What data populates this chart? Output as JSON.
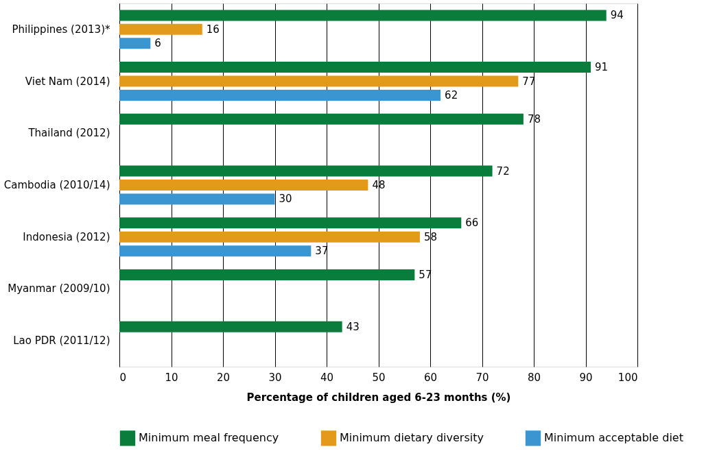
{
  "chart_data": {
    "type": "bar",
    "orientation": "horizontal",
    "xlabel": "Percentage of children aged 6-23 months (%)",
    "categories": [
      "Philippines (2013)*",
      "Viet Nam (2014)",
      "Thailand (2012)",
      "Cambodia (2010/14)",
      "Indonesia (2012)",
      "Myanmar (2009/10)",
      "Lao PDR (2011/12)"
    ],
    "series": [
      {
        "name": "Minimum meal frequency",
        "color": "#0a7d3c",
        "values": [
          94,
          91,
          78,
          72,
          66,
          57,
          43
        ]
      },
      {
        "name": "Minimum dietary diversity",
        "color": "#e39a1a",
        "values": [
          16,
          77,
          null,
          48,
          58,
          null,
          null
        ]
      },
      {
        "name": "Minimum acceptable diet",
        "color": "#3a95d0",
        "values": [
          6,
          62,
          null,
          30,
          37,
          null,
          null
        ]
      }
    ],
    "xlim": [
      0,
      100
    ],
    "xticks": [
      0,
      10,
      20,
      30,
      40,
      50,
      60,
      70,
      80,
      90,
      100
    ],
    "grid": "x",
    "legend": "bottom",
    "data_labels": true
  }
}
